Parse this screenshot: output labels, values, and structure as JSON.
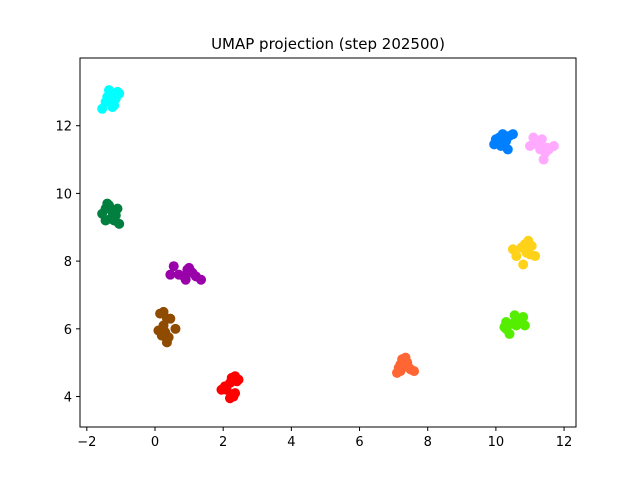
{
  "chart_data": {
    "type": "scatter",
    "title": "UMAP projection (step 202500)",
    "xlabel": "",
    "ylabel": "",
    "xlim": [
      -2.2,
      12.35
    ],
    "ylim": [
      3.1,
      14.0
    ],
    "xticks": [
      -2,
      0,
      2,
      4,
      6,
      8,
      10,
      12
    ],
    "yticks": [
      4,
      6,
      8,
      10,
      12
    ],
    "grid": false,
    "series": [
      {
        "color": "#00ffff",
        "points": [
          [
            -1.55,
            12.5
          ],
          [
            -1.45,
            12.7
          ],
          [
            -1.4,
            12.85
          ],
          [
            -1.35,
            13.05
          ],
          [
            -1.3,
            12.7
          ],
          [
            -1.25,
            12.9
          ],
          [
            -1.2,
            12.6
          ],
          [
            -1.15,
            12.8
          ],
          [
            -1.1,
            13.0
          ],
          [
            -1.05,
            12.95
          ],
          [
            -1.25,
            12.55
          ]
        ]
      },
      {
        "color": "#007f3f",
        "points": [
          [
            -1.55,
            9.4
          ],
          [
            -1.45,
            9.2
          ],
          [
            -1.45,
            9.55
          ],
          [
            -1.35,
            9.65
          ],
          [
            -1.3,
            9.25
          ],
          [
            -1.25,
            9.45
          ],
          [
            -1.2,
            9.2
          ],
          [
            -1.15,
            9.35
          ],
          [
            -1.1,
            9.55
          ],
          [
            -1.05,
            9.1
          ],
          [
            -1.4,
            9.7
          ]
        ]
      },
      {
        "color": "#9900aa",
        "points": [
          [
            0.45,
            7.6
          ],
          [
            0.55,
            7.85
          ],
          [
            0.7,
            7.6
          ],
          [
            0.85,
            7.55
          ],
          [
            0.9,
            7.45
          ],
          [
            1.0,
            7.8
          ],
          [
            1.05,
            7.7
          ],
          [
            1.1,
            7.65
          ],
          [
            1.2,
            7.55
          ],
          [
            1.35,
            7.45
          ],
          [
            0.95,
            7.75
          ]
        ]
      },
      {
        "color": "#8f4b00",
        "points": [
          [
            0.1,
            5.95
          ],
          [
            0.15,
            6.45
          ],
          [
            0.2,
            5.8
          ],
          [
            0.25,
            6.5
          ],
          [
            0.3,
            5.9
          ],
          [
            0.35,
            6.3
          ],
          [
            0.35,
            5.6
          ],
          [
            0.4,
            5.75
          ],
          [
            0.45,
            6.3
          ],
          [
            0.6,
            6.0
          ],
          [
            0.25,
            6.1
          ]
        ]
      },
      {
        "color": "#ff0000",
        "points": [
          [
            1.95,
            4.2
          ],
          [
            2.05,
            4.3
          ],
          [
            2.1,
            4.2
          ],
          [
            2.2,
            4.4
          ],
          [
            2.25,
            4.55
          ],
          [
            2.3,
            4.0
          ],
          [
            2.35,
            4.6
          ],
          [
            2.4,
            4.45
          ],
          [
            2.35,
            4.1
          ],
          [
            2.2,
            3.95
          ],
          [
            2.45,
            4.5
          ]
        ]
      },
      {
        "color": "#ff6633",
        "points": [
          [
            7.1,
            4.7
          ],
          [
            7.15,
            4.85
          ],
          [
            7.2,
            4.95
          ],
          [
            7.25,
            5.1
          ],
          [
            7.3,
            5.05
          ],
          [
            7.35,
            5.15
          ],
          [
            7.4,
            5.0
          ],
          [
            7.45,
            4.85
          ],
          [
            7.5,
            4.8
          ],
          [
            7.6,
            4.75
          ],
          [
            7.2,
            4.75
          ]
        ]
      },
      {
        "color": "#0080ff",
        "points": [
          [
            9.95,
            11.45
          ],
          [
            10.0,
            11.6
          ],
          [
            10.05,
            11.5
          ],
          [
            10.1,
            11.65
          ],
          [
            10.15,
            11.4
          ],
          [
            10.2,
            11.75
          ],
          [
            10.3,
            11.55
          ],
          [
            10.35,
            11.3
          ],
          [
            10.4,
            11.7
          ],
          [
            10.5,
            11.75
          ],
          [
            10.25,
            11.5
          ]
        ]
      },
      {
        "color": "#ffaaff",
        "points": [
          [
            11.0,
            11.4
          ],
          [
            11.1,
            11.65
          ],
          [
            11.2,
            11.45
          ],
          [
            11.25,
            11.5
          ],
          [
            11.3,
            11.3
          ],
          [
            11.35,
            11.6
          ],
          [
            11.4,
            11.0
          ],
          [
            11.45,
            11.2
          ],
          [
            11.5,
            11.35
          ],
          [
            11.7,
            11.4
          ],
          [
            11.55,
            11.3
          ]
        ]
      },
      {
        "color": "#ffd21a",
        "points": [
          [
            10.5,
            8.35
          ],
          [
            10.6,
            8.15
          ],
          [
            10.75,
            8.4
          ],
          [
            10.8,
            7.9
          ],
          [
            10.85,
            8.5
          ],
          [
            10.9,
            8.3
          ],
          [
            10.95,
            8.6
          ],
          [
            11.0,
            8.2
          ],
          [
            11.05,
            8.45
          ],
          [
            11.15,
            8.15
          ],
          [
            10.9,
            8.25
          ]
        ]
      },
      {
        "color": "#55ee00",
        "points": [
          [
            10.25,
            6.05
          ],
          [
            10.3,
            6.2
          ],
          [
            10.35,
            6.1
          ],
          [
            10.4,
            5.85
          ],
          [
            10.5,
            6.15
          ],
          [
            10.55,
            6.4
          ],
          [
            10.6,
            6.1
          ],
          [
            10.7,
            6.3
          ],
          [
            10.8,
            6.35
          ],
          [
            10.85,
            6.1
          ],
          [
            10.3,
            6.0
          ]
        ]
      }
    ]
  }
}
